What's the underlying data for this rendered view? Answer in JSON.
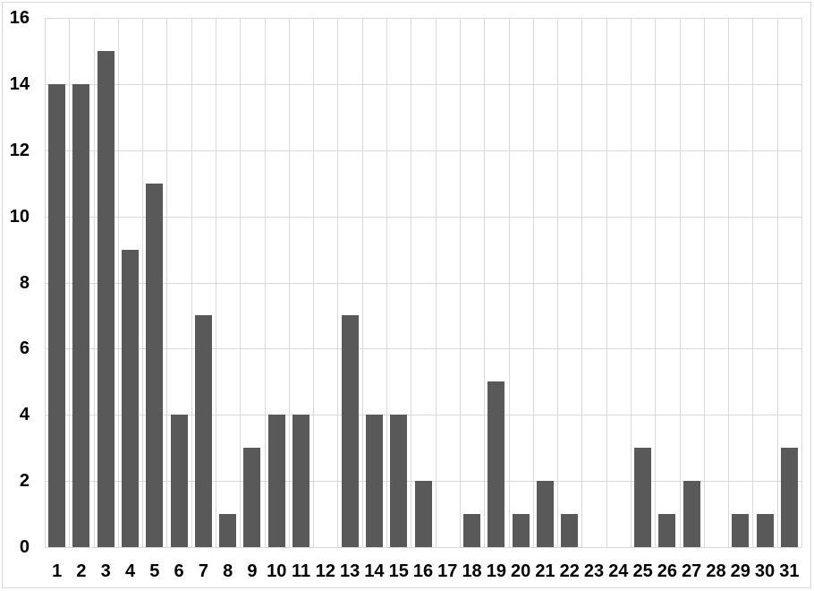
{
  "chart_data": {
    "type": "bar",
    "title": "",
    "xlabel": "",
    "ylabel": "",
    "categories": [
      "1",
      "2",
      "3",
      "4",
      "5",
      "6",
      "7",
      "8",
      "9",
      "10",
      "11",
      "12",
      "13",
      "14",
      "15",
      "16",
      "17",
      "18",
      "19",
      "20",
      "21",
      "22",
      "23",
      "24",
      "25",
      "26",
      "27",
      "28",
      "29",
      "30",
      "31"
    ],
    "values": [
      14,
      14,
      15,
      9,
      11,
      4,
      7,
      1,
      3,
      4,
      4,
      0,
      7,
      4,
      4,
      2,
      0,
      1,
      5,
      1,
      2,
      1,
      0,
      0,
      3,
      1,
      2,
      0,
      1,
      1,
      3
    ],
    "ylim": [
      0,
      16
    ],
    "yticks": [
      0,
      2,
      4,
      6,
      8,
      10,
      12,
      14,
      16
    ],
    "grid": true,
    "legend": null,
    "colors": {
      "bar": "#595959",
      "gridline": "#d9d9d9",
      "frame_border": "#d9d9d9",
      "tick_label": "#000000",
      "background": "#ffffff"
    }
  }
}
